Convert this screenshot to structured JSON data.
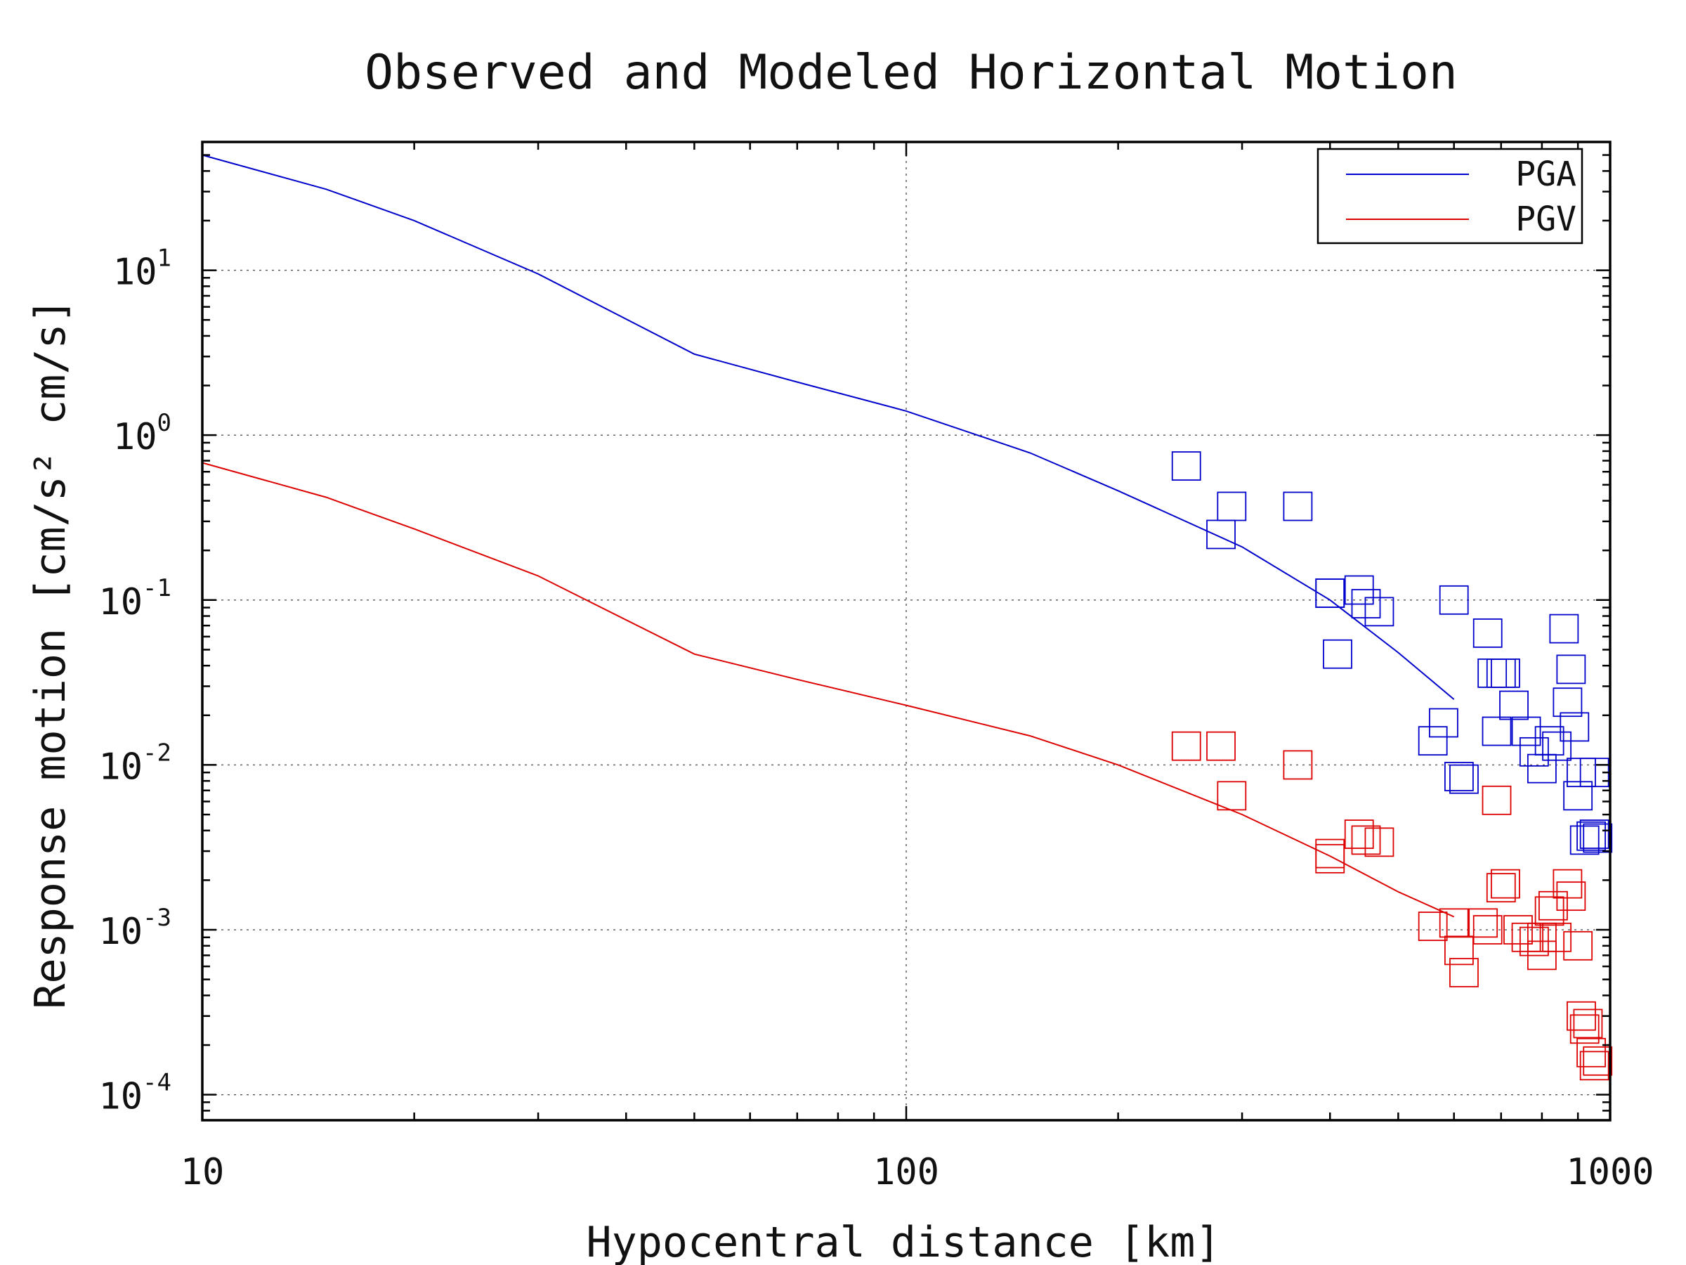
{
  "chart_data": {
    "type": "scatter",
    "title": "Observed and Modeled Horizontal Motion",
    "xlabel": "Hypocentral distance [km]",
    "ylabel": "Response motion [cm/s² cm/s]",
    "x_scale": "log",
    "y_scale": "log",
    "xlim": [
      10,
      1000
    ],
    "ylim": [
      7e-05,
      60
    ],
    "x_ticks": [
      {
        "value": 10,
        "label": "10"
      },
      {
        "value": 100,
        "label": "100"
      },
      {
        "value": 1000,
        "label": "1000"
      }
    ],
    "y_ticks": [
      {
        "value": 10,
        "base": "10",
        "exp": "1"
      },
      {
        "value": 1,
        "base": "10",
        "exp": "0"
      },
      {
        "value": 0.1,
        "base": "10",
        "exp": "-1"
      },
      {
        "value": 0.01,
        "base": "10",
        "exp": "-2"
      },
      {
        "value": 0.001,
        "base": "10",
        "exp": "-3"
      },
      {
        "value": 0.0001,
        "base": "10",
        "exp": "-4"
      }
    ],
    "grid": true,
    "legend_position": "top-right",
    "colors": {
      "pga": "#0000cc",
      "pgv": "#dd0000"
    },
    "series": [
      {
        "name": "PGA",
        "color": "#0000cc",
        "line": {
          "x": [
            10,
            15,
            20,
            30,
            50,
            70,
            100,
            150,
            200,
            300,
            400,
            500,
            600
          ],
          "y": [
            50,
            31,
            20,
            9.5,
            3.1,
            2.1,
            1.4,
            0.78,
            0.46,
            0.21,
            0.1,
            0.048,
            0.025
          ]
        },
        "points": {
          "x": [
            250,
            290,
            280,
            360,
            400,
            410,
            440,
            450,
            470,
            600,
            670,
            680,
            700,
            710,
            860,
            880,
            400,
            560,
            580,
            610,
            620,
            690,
            730,
            760,
            780,
            800,
            820,
            840,
            870,
            890,
            900,
            910,
            920,
            940,
            950,
            960,
            950
          ],
          "y": [
            0.65,
            0.37,
            0.25,
            0.37,
            0.11,
            0.047,
            0.115,
            0.095,
            0.085,
            0.1,
            0.063,
            0.036,
            0.036,
            0.036,
            0.067,
            0.038,
            0.11,
            0.014,
            0.018,
            0.0085,
            0.0082,
            0.016,
            0.023,
            0.016,
            0.012,
            0.0095,
            0.014,
            0.013,
            0.024,
            0.017,
            0.0065,
            0.009,
            0.0035,
            0.0037,
            0.0038,
            0.0036,
            0.009
          ]
        }
      },
      {
        "name": "PGV",
        "color": "#dd0000",
        "line": {
          "x": [
            10,
            15,
            20,
            30,
            50,
            70,
            100,
            150,
            200,
            300,
            400,
            500,
            600
          ],
          "y": [
            0.68,
            0.42,
            0.27,
            0.14,
            0.047,
            0.033,
            0.023,
            0.015,
            0.01,
            0.005,
            0.0028,
            0.0017,
            0.0012
          ]
        },
        "points": {
          "x": [
            250,
            290,
            280,
            360,
            400,
            400,
            440,
            450,
            470,
            560,
            600,
            610,
            620,
            660,
            700,
            710,
            740,
            760,
            780,
            800,
            800,
            820,
            830,
            840,
            870,
            880,
            900,
            910,
            920,
            930,
            940,
            950,
            960,
            670,
            690
          ],
          "y": [
            0.013,
            0.0065,
            0.013,
            0.01,
            0.0027,
            0.0029,
            0.0038,
            0.0035,
            0.0034,
            0.00105,
            0.0011,
            0.00075,
            0.00055,
            0.0011,
            0.0018,
            0.0019,
            0.001,
            0.0009,
            0.00085,
            0.0007,
            0.0009,
            0.0013,
            0.0014,
            0.0009,
            0.0019,
            0.0016,
            0.0008,
            0.0003,
            0.00025,
            0.00027,
            0.00018,
            0.00015,
            0.00016,
            0.001,
            0.0061
          ]
        }
      }
    ]
  }
}
